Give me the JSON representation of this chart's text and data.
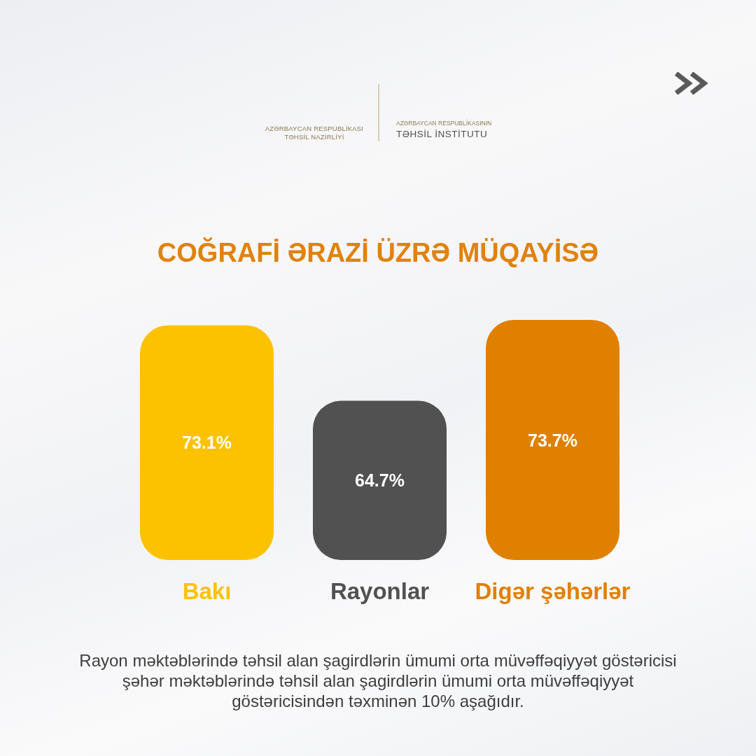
{
  "chart_data": {
    "type": "bar",
    "title": "COĞRAFİ ƏRAZİ ÜZRƏ MÜQAYİSƏ",
    "categories": [
      "Bakı",
      "Rayonlar",
      "Digər şəhərlər"
    ],
    "values": [
      73.1,
      64.7,
      73.7
    ],
    "colors": [
      "#fcc200",
      "#515151",
      "#e08000"
    ],
    "value_labels": [
      "73.1%",
      "64.7%",
      "73.7%"
    ],
    "ylim": [
      47,
      73.7
    ],
    "tick_labels": "x",
    "annotations": [
      "AZƏRBAYCAN RESPUBLİKASI",
      "TƏHSİL NAZİRLİYİ",
      "AZƏRBAYCAN RESPUBLİKASININ",
      "TƏHSİL İNSTİTUTU",
      "Rayon məktəblərində təhsil alan şagirdlərin ümumi orta müvəffəqiyyət göstəricisi şəhər məktəblərində təhsil alan şagirdlərin ümumi orta müvəffəqiyyət göstəricisindən təxminən 10% aşağıdır."
    ]
  }
}
